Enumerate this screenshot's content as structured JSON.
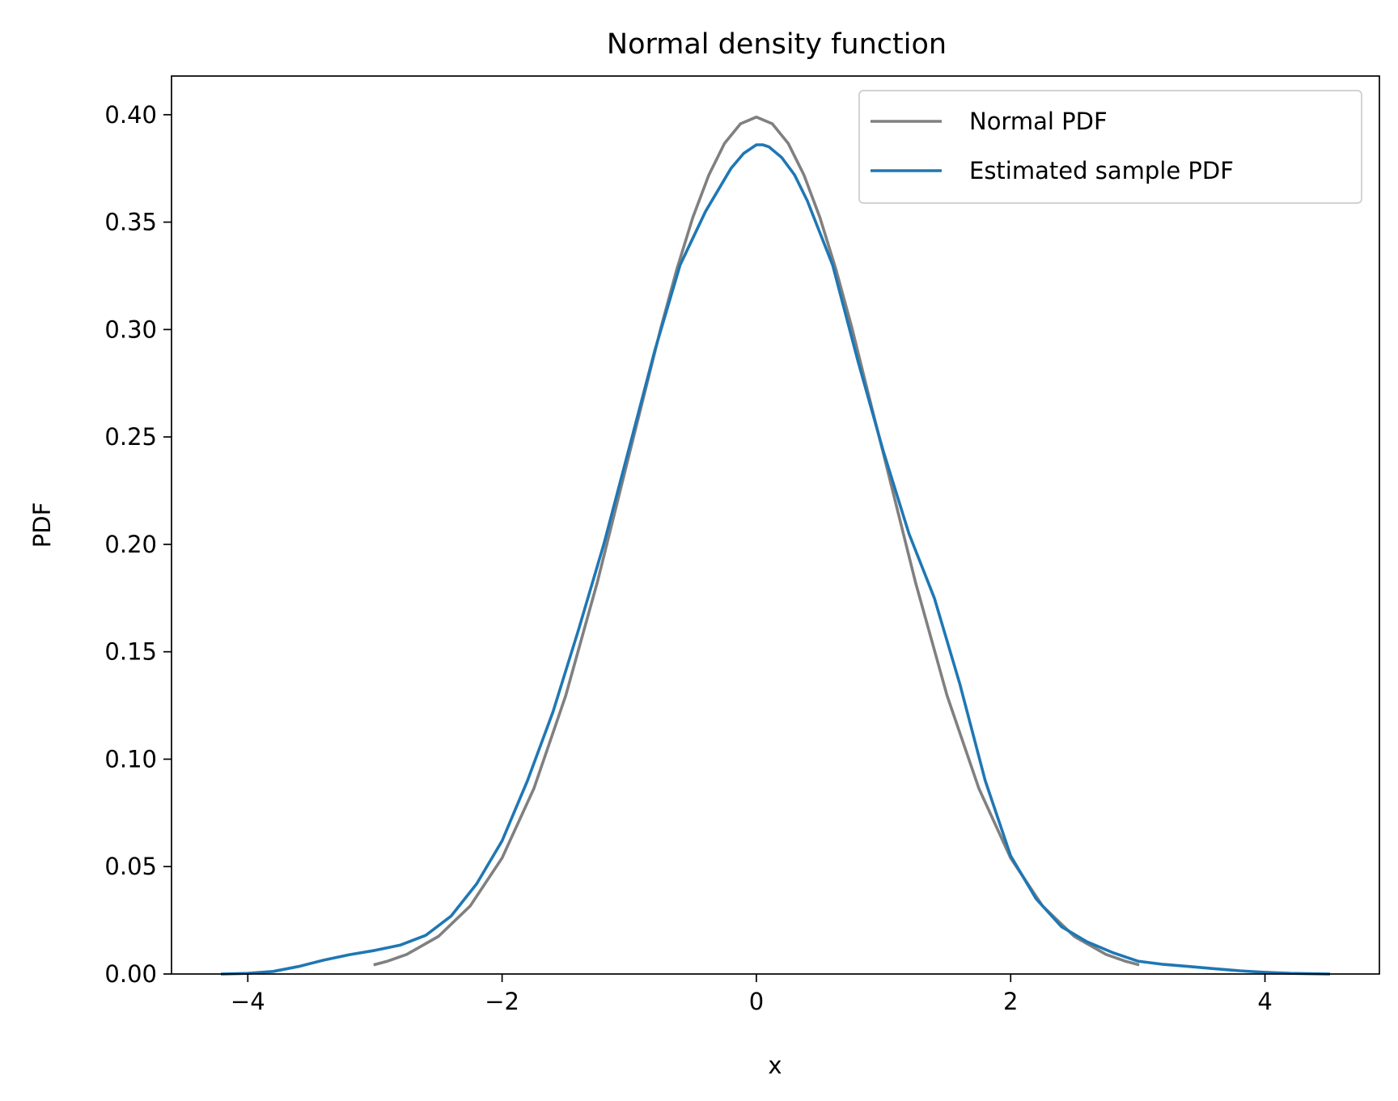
{
  "chart_data": {
    "type": "line",
    "title": "Normal density function",
    "xlabel": "x",
    "ylabel": "PDF",
    "xlim": [
      -4.6,
      4.9
    ],
    "ylim": [
      0,
      0.418
    ],
    "xticks": [
      -4,
      -2,
      0,
      2,
      4
    ],
    "xtick_labels": [
      "−4",
      "−2",
      "0",
      "2",
      "4"
    ],
    "yticks": [
      0,
      0.05,
      0.1,
      0.15,
      0.2,
      0.25,
      0.3,
      0.35,
      0.4
    ],
    "ytick_labels": [
      "0.00",
      "0.05",
      "0.10",
      "0.15",
      "0.20",
      "0.25",
      "0.30",
      "0.35",
      "0.40"
    ],
    "grid": false,
    "legend_position": "top-right",
    "series": [
      {
        "name": "Normal PDF",
        "color": "#808080",
        "x": [
          -3.0,
          -2.9,
          -2.75,
          -2.5,
          -2.25,
          -2.0,
          -1.75,
          -1.5,
          -1.25,
          -1.0,
          -0.875,
          -0.75,
          -0.625,
          -0.5,
          -0.375,
          -0.25,
          -0.125,
          0.0,
          0.125,
          0.25,
          0.375,
          0.5,
          0.625,
          0.75,
          0.875,
          1.0,
          1.25,
          1.5,
          1.75,
          2.0,
          2.25,
          2.5,
          2.75,
          2.9,
          3.0
        ],
        "y": [
          0.0044,
          0.006,
          0.0091,
          0.0175,
          0.0317,
          0.054,
          0.0863,
          0.1295,
          0.1826,
          0.242,
          0.2714,
          0.3011,
          0.3282,
          0.3521,
          0.3718,
          0.3867,
          0.3958,
          0.3989,
          0.3958,
          0.3867,
          0.3718,
          0.3521,
          0.3282,
          0.3011,
          0.2714,
          0.242,
          0.1826,
          0.1295,
          0.0863,
          0.054,
          0.0317,
          0.0175,
          0.0091,
          0.006,
          0.0044
        ]
      },
      {
        "name": "Estimated sample PDF",
        "color": "#1f77b4",
        "x": [
          -4.2,
          -4.0,
          -3.8,
          -3.6,
          -3.4,
          -3.2,
          -3.0,
          -2.8,
          -2.6,
          -2.4,
          -2.2,
          -2.0,
          -1.8,
          -1.6,
          -1.4,
          -1.2,
          -1.0,
          -0.8,
          -0.6,
          -0.4,
          -0.2,
          -0.1,
          0.0,
          0.05,
          0.1,
          0.2,
          0.3,
          0.4,
          0.6,
          0.8,
          1.0,
          1.2,
          1.4,
          1.6,
          1.8,
          2.0,
          2.2,
          2.4,
          2.6,
          2.8,
          3.0,
          3.2,
          3.4,
          3.6,
          3.8,
          4.0,
          4.2,
          4.5
        ],
        "y": [
          0.0,
          0.0003,
          0.0012,
          0.0035,
          0.0065,
          0.009,
          0.011,
          0.0135,
          0.018,
          0.027,
          0.042,
          0.062,
          0.09,
          0.122,
          0.16,
          0.2,
          0.245,
          0.29,
          0.33,
          0.355,
          0.375,
          0.382,
          0.386,
          0.386,
          0.385,
          0.38,
          0.372,
          0.36,
          0.33,
          0.285,
          0.243,
          0.205,
          0.175,
          0.135,
          0.09,
          0.055,
          0.035,
          0.022,
          0.015,
          0.01,
          0.006,
          0.0045,
          0.0035,
          0.0025,
          0.0015,
          0.0008,
          0.0003,
          0.0
        ]
      }
    ]
  }
}
